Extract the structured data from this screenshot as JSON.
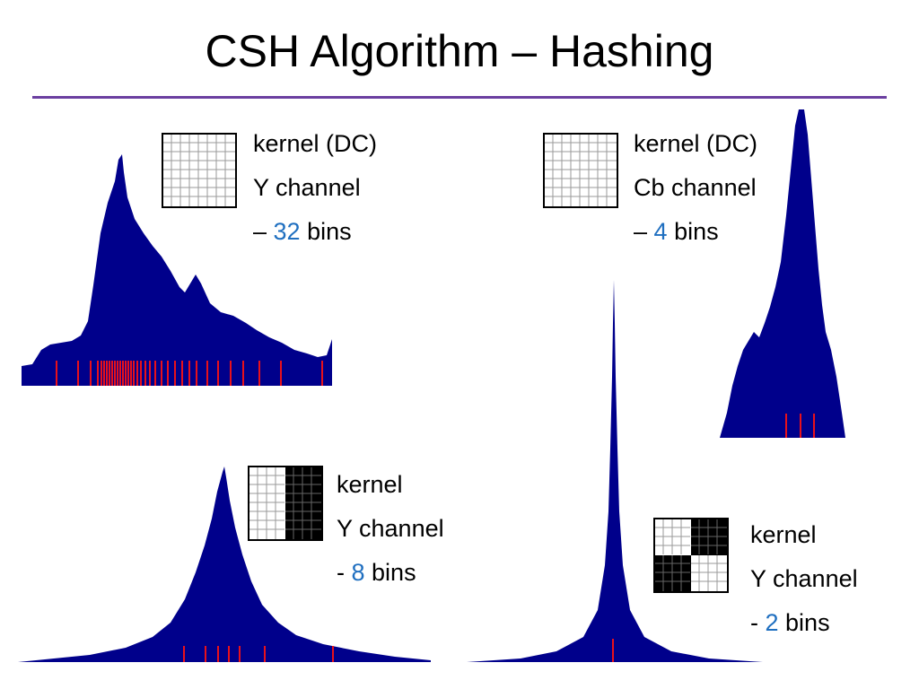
{
  "title": "CSH Algorithm – Hashing",
  "colors": {
    "rule": "#6b3fa0",
    "histogram": "#00008b",
    "bin_markers": "#e8111b",
    "bin_count": "#1f6fc0"
  },
  "panels": [
    {
      "kernel_word": "kernel (DC)",
      "channel": "Y channel",
      "prefix": "– ",
      "bins": "32",
      "suffix": " bins"
    },
    {
      "kernel_word": "kernel (DC)",
      "channel": "Cb channel",
      "prefix": "– ",
      "bins": "4",
      "suffix": " bins"
    },
    {
      "kernel_word": "kernel",
      "channel": "Y channel",
      "prefix": "- ",
      "bins": "8",
      "suffix": " bins"
    },
    {
      "kernel_word": "kernel",
      "channel": "Y channel",
      "prefix": "- ",
      "bins": "2",
      "suffix": " bins"
    }
  ]
}
